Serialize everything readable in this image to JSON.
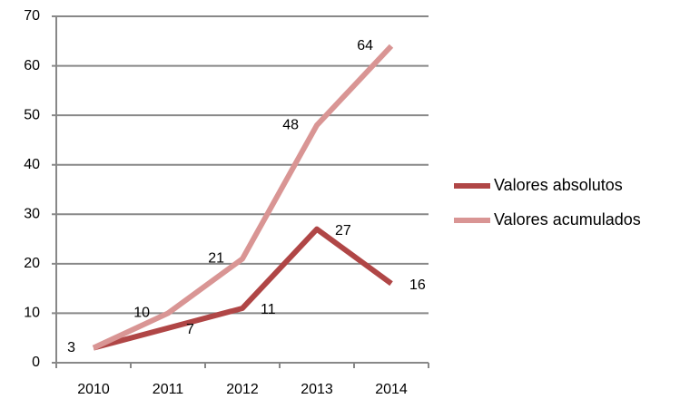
{
  "chart_data": {
    "type": "line",
    "categories": [
      "2010",
      "2011",
      "2012",
      "2013",
      "2014"
    ],
    "series": [
      {
        "name": "Valores absolutos",
        "color": "#b04646",
        "values": [
          3,
          7,
          11,
          27,
          16
        ]
      },
      {
        "name": "Valores acumulados",
        "color": "#d99594",
        "values": [
          3,
          10,
          21,
          48,
          64
        ]
      }
    ],
    "ylim": [
      0,
      70
    ],
    "yticks": [
      0,
      10,
      20,
      30,
      40,
      50,
      60,
      70
    ],
    "grid": true,
    "legend": "right"
  }
}
